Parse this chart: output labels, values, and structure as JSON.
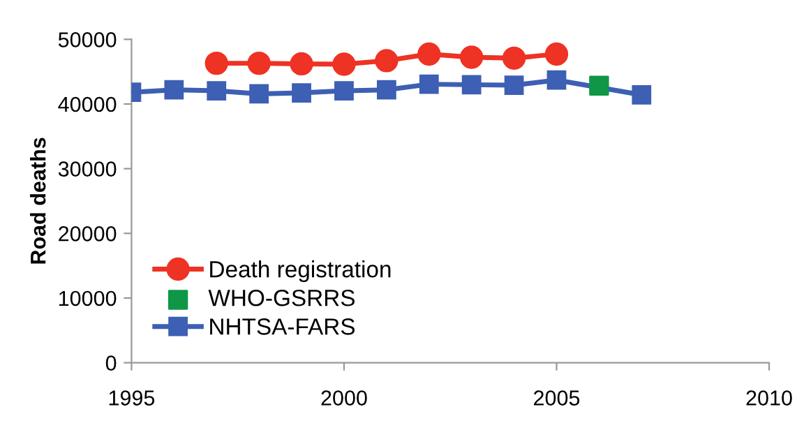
{
  "chart_data": {
    "type": "line",
    "ylabel": "Road deaths",
    "xlim": [
      1995,
      2010
    ],
    "xticks": [
      1995,
      2000,
      2005,
      2010
    ],
    "ylim": [
      0,
      50000
    ],
    "yticks": [
      0,
      10000,
      20000,
      30000,
      40000,
      50000
    ],
    "grid": false,
    "legend": "bottom left",
    "series": [
      {
        "name": "Death registration",
        "color": "#ee3224",
        "marker": "circle",
        "x": [
          1997,
          1998,
          1999,
          2000,
          2001,
          2002,
          2003,
          2004,
          2005
        ],
        "values": [
          46300,
          46300,
          46210,
          46150,
          46700,
          47720,
          47230,
          47090,
          47720
        ]
      },
      {
        "name": "WHO-GSRRS",
        "color": "#0f9647",
        "type": "scatter",
        "marker": "square",
        "x": [
          2006
        ],
        "values": [
          42830
        ]
      },
      {
        "name": "NHTSA-FARS",
        "color": "#3d5fb4",
        "marker": "square",
        "x": [
          1995,
          1996,
          1997,
          1998,
          1999,
          2000,
          2001,
          2002,
          2003,
          2004,
          2005,
          2007
        ],
        "values": [
          41810,
          42190,
          42040,
          41570,
          41720,
          42040,
          42190,
          43060,
          42980,
          42910,
          43700,
          41410
        ]
      }
    ]
  }
}
